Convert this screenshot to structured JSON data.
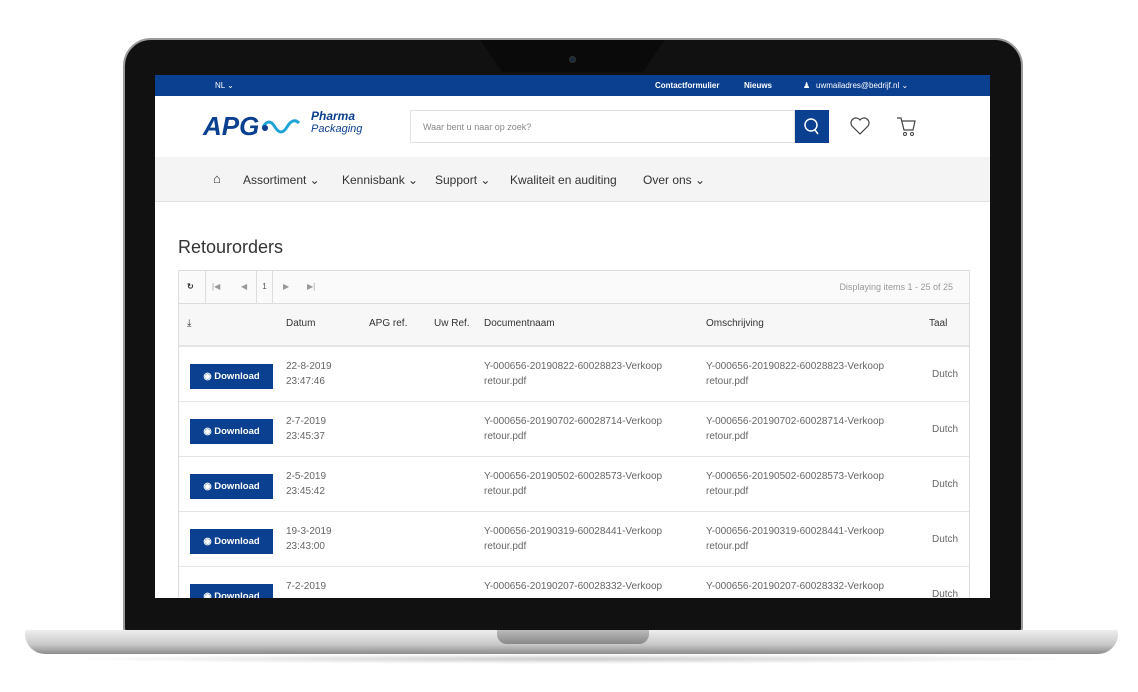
{
  "topbar": {
    "language": "NL ⌄",
    "contact": "Contactformulier",
    "news": "Nieuws",
    "user": "uwmailadres@bedrijf.nl ⌄"
  },
  "header": {
    "logo_text": "APG",
    "logo_sub1": "Pharma",
    "logo_sub2": "Packaging",
    "search_placeholder": "Waar bent u naar op zoek?"
  },
  "nav": {
    "items": [
      "Assortiment ⌄",
      "Kennisbank ⌄",
      "Support ⌄",
      "Kwaliteit en auditing",
      "Over ons ⌄"
    ]
  },
  "page": {
    "title": "Retourorders"
  },
  "grid": {
    "page": "1",
    "displaying": "Displaying items 1 - 25 of 25",
    "columns": [
      "Datum",
      "APG ref.",
      "Uw Ref.",
      "Documentnaam",
      "Omschrijving",
      "Taal"
    ],
    "download_label": "Download",
    "rows": [
      {
        "date": "22-8-2019",
        "time": "23:47:46",
        "doc1": "Y-000656-20190822-60028823-Verkoop",
        "doc2": "retour.pdf",
        "lang": "Dutch"
      },
      {
        "date": "2-7-2019",
        "time": "23:45:37",
        "doc1": "Y-000656-20190702-60028714-Verkoop",
        "doc2": "retour.pdf",
        "lang": "Dutch"
      },
      {
        "date": "2-5-2019",
        "time": "23:45:42",
        "doc1": "Y-000656-20190502-60028573-Verkoop",
        "doc2": "retour.pdf",
        "lang": "Dutch"
      },
      {
        "date": "19-3-2019",
        "time": "23:43:00",
        "doc1": "Y-000656-20190319-60028441-Verkoop",
        "doc2": "retour.pdf",
        "lang": "Dutch"
      },
      {
        "date": "7-2-2019",
        "time": "",
        "doc1": "Y-000656-20190207-60028332-Verkoop",
        "doc2": "",
        "lang": "Dutch"
      }
    ]
  },
  "colors": {
    "brand": "#0b3f8f",
    "accent": "#1fa3d6"
  }
}
